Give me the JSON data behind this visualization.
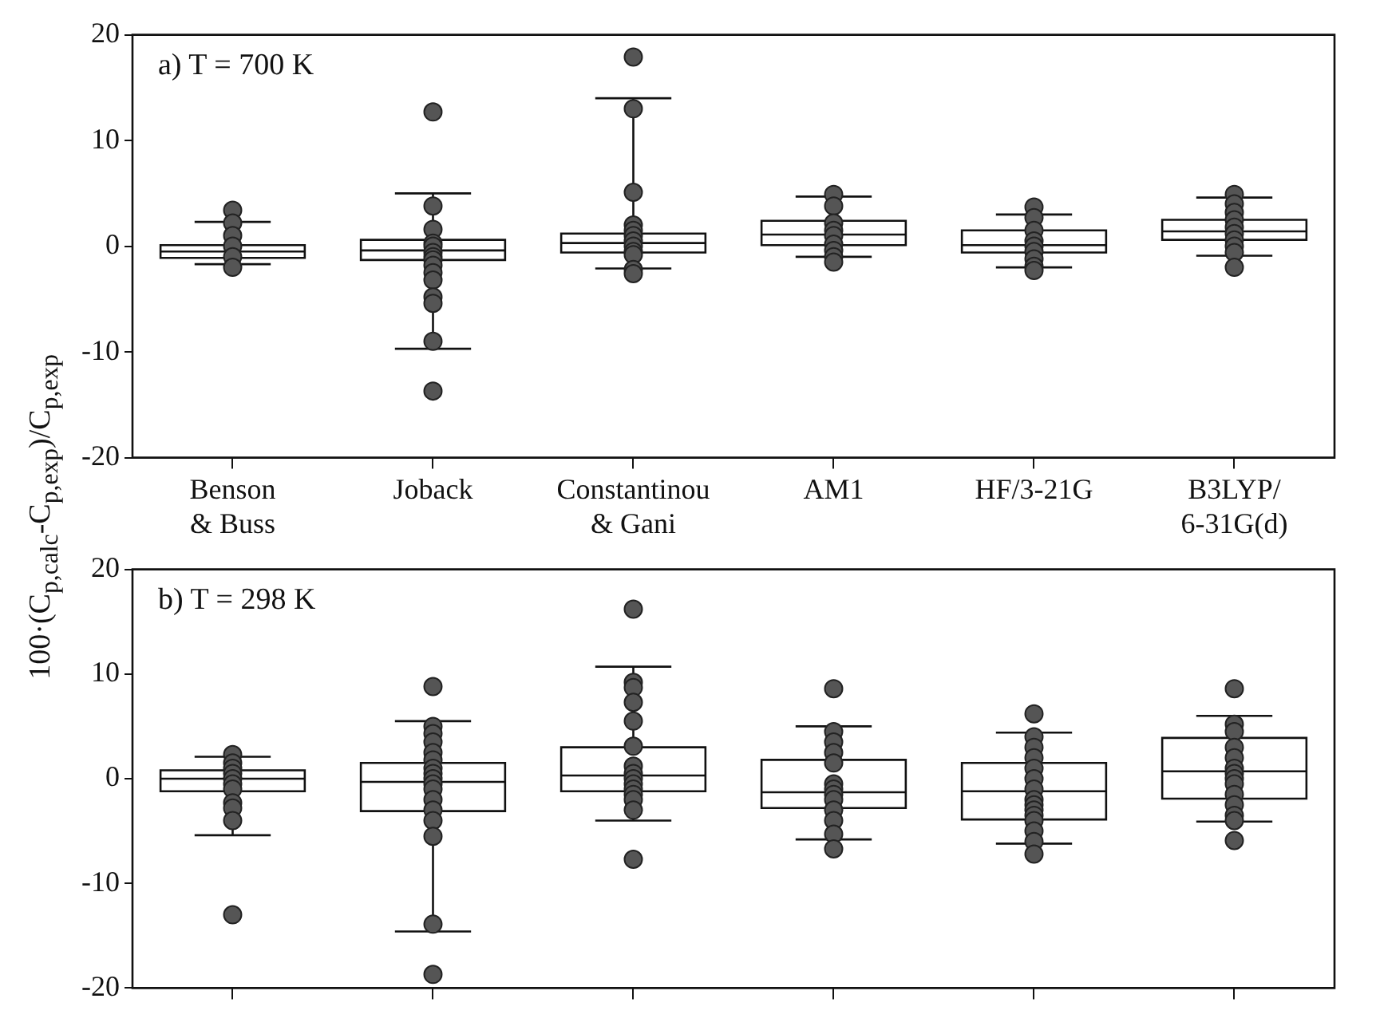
{
  "chart_data": [
    {
      "type": "box",
      "ylabel": "100·(C$_{p,calc}$-C$_{p,exp}$)/C$_{p,exp}$",
      "annotations": [
        "a) T = 700 K"
      ],
      "categories": [
        "Benson & Buss",
        "Joback",
        "Constantinou & Gani",
        "AM1",
        "HF/3-21G",
        "B3LYP/6-31G(d)"
      ],
      "boxes": [
        {
          "low": -1.7,
          "q1": -1.1,
          "median": -0.5,
          "q3": 0.1,
          "high": 2.3
        },
        {
          "low": -9.7,
          "q1": -1.3,
          "median": -0.4,
          "q3": 0.6,
          "high": 5.0
        },
        {
          "low": -2.1,
          "q1": -0.6,
          "median": 0.3,
          "q3": 1.2,
          "high": 14.0
        },
        {
          "low": -1.0,
          "q1": 0.1,
          "median": 1.1,
          "q3": 2.4,
          "high": 4.7
        },
        {
          "low": -2.0,
          "q1": -0.6,
          "median": 0.1,
          "q3": 1.5,
          "high": 3.0
        },
        {
          "low": -0.9,
          "q1": 0.6,
          "median": 1.4,
          "q3": 2.5,
          "high": 4.6
        }
      ],
      "series": [
        {
          "type": "scatter",
          "color": "#555555",
          "x": [
            "Benson & Buss",
            "Benson & Buss",
            "Benson & Buss",
            "Benson & Buss",
            "Benson & Buss",
            "Benson & Buss",
            "Joback",
            "Joback",
            "Joback",
            "Joback",
            "Joback",
            "Joback",
            "Joback",
            "Joback",
            "Joback",
            "Joback",
            "Joback",
            "Joback",
            "Joback",
            "Joback",
            "Joback",
            "Constantinou & Gani",
            "Constantinou & Gani",
            "Constantinou & Gani",
            "Constantinou & Gani",
            "Constantinou & Gani",
            "Constantinou & Gani",
            "Constantinou & Gani",
            "Constantinou & Gani",
            "Constantinou & Gani",
            "Constantinou & Gani",
            "Constantinou & Gani",
            "Constantinou & Gani",
            "AM1",
            "AM1",
            "AM1",
            "AM1",
            "AM1",
            "AM1",
            "AM1",
            "AM1",
            "AM1",
            "HF/3-21G",
            "HF/3-21G",
            "HF/3-21G",
            "HF/3-21G",
            "HF/3-21G",
            "HF/3-21G",
            "HF/3-21G",
            "HF/3-21G",
            "HF/3-21G",
            "B3LYP/6-31G(d)",
            "B3LYP/6-31G(d)",
            "B3LYP/6-31G(d)",
            "B3LYP/6-31G(d)",
            "B3LYP/6-31G(d)",
            "B3LYP/6-31G(d)",
            "B3LYP/6-31G(d)",
            "B3LYP/6-31G(d)",
            "B3LYP/6-31G(d)",
            "B3LYP/6-31G(d)"
          ],
          "values": [
            3.4,
            2.2,
            1.0,
            0,
            -1.0,
            -2.0,
            12.7,
            3.8,
            1.6,
            0.3,
            0,
            -0.6,
            -1.0,
            -1.3,
            -1.8,
            -2.5,
            -3.2,
            -4.8,
            -5.4,
            -9.0,
            -13.7,
            17.9,
            13.0,
            5.1,
            2.0,
            1.5,
            1.0,
            0.5,
            0,
            -0.5,
            -0.8,
            -2.2,
            -2.6,
            4.9,
            3.8,
            2.2,
            1.5,
            1.0,
            0.2,
            -0.4,
            -1.0,
            -1.5,
            3.7,
            2.7,
            1.5,
            0.5,
            0,
            -0.5,
            -1.2,
            -1.9,
            -2.3,
            4.9,
            4.0,
            3.2,
            2.5,
            1.8,
            1.2,
            0.6,
            0,
            -0.6,
            -2.0
          ]
        }
      ],
      "ylim": [
        -20,
        20
      ],
      "yticks": [
        -20,
        -10,
        0,
        10,
        20
      ],
      "marker": "circle"
    },
    {
      "type": "box",
      "annotations": [
        "b) T = 298 K"
      ],
      "tick_labels": "y",
      "categories": [
        "Benson & Buss",
        "Joback",
        "Constantinou & Gani",
        "AM1",
        "HF/3-21G",
        "B3LYP/6-31G(d)"
      ],
      "boxes": [
        {
          "low": -5.4,
          "q1": -1.2,
          "median": 0,
          "q3": 0.8,
          "high": 2.1
        },
        {
          "low": -14.6,
          "q1": -3.1,
          "median": -0.3,
          "q3": 1.5,
          "high": 5.5
        },
        {
          "low": -4.0,
          "q1": -1.2,
          "median": 0.3,
          "q3": 3.0,
          "high": 10.7
        },
        {
          "low": -5.8,
          "q1": -2.8,
          "median": -1.3,
          "q3": 1.8,
          "high": 5.0
        },
        {
          "low": -6.2,
          "q1": -3.9,
          "median": -1.2,
          "q3": 1.5,
          "high": 4.4
        },
        {
          "low": -4.1,
          "q1": -1.9,
          "median": 0.7,
          "q3": 3.9,
          "high": 6.0
        }
      ],
      "series": [
        {
          "type": "scatter",
          "color": "#555555",
          "x": [
            "Benson & Buss",
            "Benson & Buss",
            "Benson & Buss",
            "Benson & Buss",
            "Benson & Buss",
            "Benson & Buss",
            "Benson & Buss",
            "Benson & Buss",
            "Benson & Buss",
            "Benson & Buss",
            "Benson & Buss",
            "Joback",
            "Joback",
            "Joback",
            "Joback",
            "Joback",
            "Joback",
            "Joback",
            "Joback",
            "Joback",
            "Joback",
            "Joback",
            "Joback",
            "Joback",
            "Joback",
            "Joback",
            "Joback",
            "Joback",
            "Constantinou & Gani",
            "Constantinou & Gani",
            "Constantinou & Gani",
            "Constantinou & Gani",
            "Constantinou & Gani",
            "Constantinou & Gani",
            "Constantinou & Gani",
            "Constantinou & Gani",
            "Constantinou & Gani",
            "Constantinou & Gani",
            "Constantinou & Gani",
            "Constantinou & Gani",
            "Constantinou & Gani",
            "Constantinou & Gani",
            "Constantinou & Gani",
            "AM1",
            "AM1",
            "AM1",
            "AM1",
            "AM1",
            "AM1",
            "AM1",
            "AM1",
            "AM1",
            "AM1",
            "AM1",
            "AM1",
            "AM1",
            "HF/3-21G",
            "HF/3-21G",
            "HF/3-21G",
            "HF/3-21G",
            "HF/3-21G",
            "HF/3-21G",
            "HF/3-21G",
            "HF/3-21G",
            "HF/3-21G",
            "HF/3-21G",
            "HF/3-21G",
            "HF/3-21G",
            "HF/3-21G",
            "HF/3-21G",
            "HF/3-21G",
            "B3LYP/6-31G(d)",
            "B3LYP/6-31G(d)",
            "B3LYP/6-31G(d)",
            "B3LYP/6-31G(d)",
            "B3LYP/6-31G(d)",
            "B3LYP/6-31G(d)",
            "B3LYP/6-31G(d)",
            "B3LYP/6-31G(d)",
            "B3LYP/6-31G(d)",
            "B3LYP/6-31G(d)",
            "B3LYP/6-31G(d)",
            "B3LYP/6-31G(d)",
            "B3LYP/6-31G(d)",
            "B3LYP/6-31G(d)"
          ],
          "values": [
            2.3,
            1.5,
            1.0,
            0.5,
            0,
            -0.5,
            -1.0,
            -2.3,
            -2.8,
            -4.0,
            -13.0,
            8.8,
            5.0,
            4.3,
            3.5,
            2.5,
            1.8,
            1.0,
            0.5,
            0,
            -0.5,
            -1.0,
            -2.0,
            -3.0,
            -4.0,
            -5.5,
            -13.9,
            -18.7,
            16.2,
            9.2,
            8.7,
            7.3,
            5.5,
            3.1,
            1.2,
            0.5,
            0,
            -0.5,
            -1.0,
            -1.5,
            -2.0,
            -3.0,
            -7.7,
            8.6,
            4.5,
            3.5,
            2.5,
            1.5,
            -0.5,
            -1.0,
            -1.5,
            -2.0,
            -3.0,
            -4.0,
            -5.3,
            -6.7,
            6.2,
            4.0,
            3.0,
            2.0,
            1.0,
            0,
            -1.0,
            -2.0,
            -2.5,
            -3.0,
            -3.5,
            -4.0,
            -5.0,
            -6.0,
            -7.2,
            8.6,
            5.2,
            4.5,
            3.0,
            2.0,
            1.0,
            0.5,
            0,
            -0.5,
            -1.5,
            -2.5,
            -3.5,
            -4.0,
            -5.9
          ]
        }
      ],
      "ylim": [
        -20,
        20
      ],
      "yticks": [
        -20,
        -10,
        0,
        10,
        20
      ],
      "marker": "circle"
    }
  ]
}
